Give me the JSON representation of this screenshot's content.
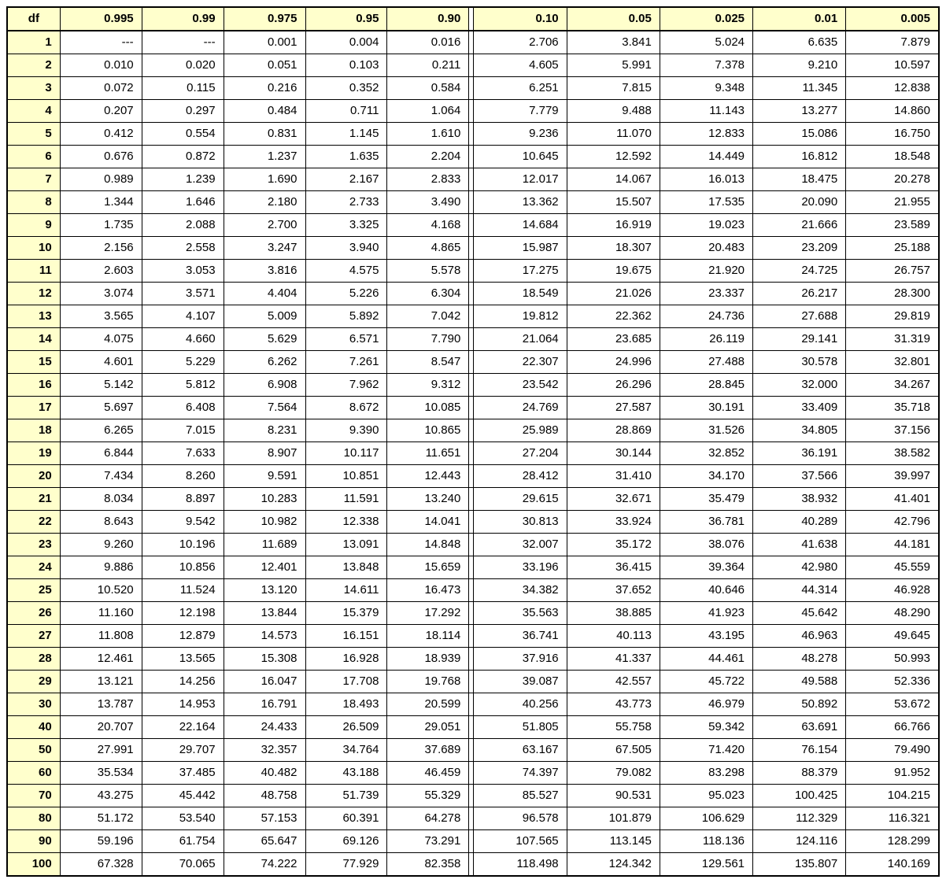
{
  "table": {
    "type": "table",
    "header_bg": "#ffffcc",
    "cell_bg": "#ffffff",
    "border_color": "#000000",
    "font_family": "Arial",
    "header_fontsize": 15,
    "cell_fontsize": 15,
    "df_label": "df",
    "left_headers": [
      "0.995",
      "0.99",
      "0.975",
      "0.95",
      "0.90"
    ],
    "right_headers": [
      "0.10",
      "0.05",
      "0.025",
      "0.01",
      "0.005"
    ],
    "rows": [
      {
        "df": "1",
        "l": [
          "---",
          "---",
          "0.001",
          "0.004",
          "0.016"
        ],
        "r": [
          "2.706",
          "3.841",
          "5.024",
          "6.635",
          "7.879"
        ]
      },
      {
        "df": "2",
        "l": [
          "0.010",
          "0.020",
          "0.051",
          "0.103",
          "0.211"
        ],
        "r": [
          "4.605",
          "5.991",
          "7.378",
          "9.210",
          "10.597"
        ]
      },
      {
        "df": "3",
        "l": [
          "0.072",
          "0.115",
          "0.216",
          "0.352",
          "0.584"
        ],
        "r": [
          "6.251",
          "7.815",
          "9.348",
          "11.345",
          "12.838"
        ]
      },
      {
        "df": "4",
        "l": [
          "0.207",
          "0.297",
          "0.484",
          "0.711",
          "1.064"
        ],
        "r": [
          "7.779",
          "9.488",
          "11.143",
          "13.277",
          "14.860"
        ]
      },
      {
        "df": "5",
        "l": [
          "0.412",
          "0.554",
          "0.831",
          "1.145",
          "1.610"
        ],
        "r": [
          "9.236",
          "11.070",
          "12.833",
          "15.086",
          "16.750"
        ]
      },
      {
        "df": "6",
        "l": [
          "0.676",
          "0.872",
          "1.237",
          "1.635",
          "2.204"
        ],
        "r": [
          "10.645",
          "12.592",
          "14.449",
          "16.812",
          "18.548"
        ]
      },
      {
        "df": "7",
        "l": [
          "0.989",
          "1.239",
          "1.690",
          "2.167",
          "2.833"
        ],
        "r": [
          "12.017",
          "14.067",
          "16.013",
          "18.475",
          "20.278"
        ]
      },
      {
        "df": "8",
        "l": [
          "1.344",
          "1.646",
          "2.180",
          "2.733",
          "3.490"
        ],
        "r": [
          "13.362",
          "15.507",
          "17.535",
          "20.090",
          "21.955"
        ]
      },
      {
        "df": "9",
        "l": [
          "1.735",
          "2.088",
          "2.700",
          "3.325",
          "4.168"
        ],
        "r": [
          "14.684",
          "16.919",
          "19.023",
          "21.666",
          "23.589"
        ]
      },
      {
        "df": "10",
        "l": [
          "2.156",
          "2.558",
          "3.247",
          "3.940",
          "4.865"
        ],
        "r": [
          "15.987",
          "18.307",
          "20.483",
          "23.209",
          "25.188"
        ]
      },
      {
        "df": "11",
        "l": [
          "2.603",
          "3.053",
          "3.816",
          "4.575",
          "5.578"
        ],
        "r": [
          "17.275",
          "19.675",
          "21.920",
          "24.725",
          "26.757"
        ]
      },
      {
        "df": "12",
        "l": [
          "3.074",
          "3.571",
          "4.404",
          "5.226",
          "6.304"
        ],
        "r": [
          "18.549",
          "21.026",
          "23.337",
          "26.217",
          "28.300"
        ]
      },
      {
        "df": "13",
        "l": [
          "3.565",
          "4.107",
          "5.009",
          "5.892",
          "7.042"
        ],
        "r": [
          "19.812",
          "22.362",
          "24.736",
          "27.688",
          "29.819"
        ]
      },
      {
        "df": "14",
        "l": [
          "4.075",
          "4.660",
          "5.629",
          "6.571",
          "7.790"
        ],
        "r": [
          "21.064",
          "23.685",
          "26.119",
          "29.141",
          "31.319"
        ]
      },
      {
        "df": "15",
        "l": [
          "4.601",
          "5.229",
          "6.262",
          "7.261",
          "8.547"
        ],
        "r": [
          "22.307",
          "24.996",
          "27.488",
          "30.578",
          "32.801"
        ]
      },
      {
        "df": "16",
        "l": [
          "5.142",
          "5.812",
          "6.908",
          "7.962",
          "9.312"
        ],
        "r": [
          "23.542",
          "26.296",
          "28.845",
          "32.000",
          "34.267"
        ]
      },
      {
        "df": "17",
        "l": [
          "5.697",
          "6.408",
          "7.564",
          "8.672",
          "10.085"
        ],
        "r": [
          "24.769",
          "27.587",
          "30.191",
          "33.409",
          "35.718"
        ]
      },
      {
        "df": "18",
        "l": [
          "6.265",
          "7.015",
          "8.231",
          "9.390",
          "10.865"
        ],
        "r": [
          "25.989",
          "28.869",
          "31.526",
          "34.805",
          "37.156"
        ]
      },
      {
        "df": "19",
        "l": [
          "6.844",
          "7.633",
          "8.907",
          "10.117",
          "11.651"
        ],
        "r": [
          "27.204",
          "30.144",
          "32.852",
          "36.191",
          "38.582"
        ]
      },
      {
        "df": "20",
        "l": [
          "7.434",
          "8.260",
          "9.591",
          "10.851",
          "12.443"
        ],
        "r": [
          "28.412",
          "31.410",
          "34.170",
          "37.566",
          "39.997"
        ]
      },
      {
        "df": "21",
        "l": [
          "8.034",
          "8.897",
          "10.283",
          "11.591",
          "13.240"
        ],
        "r": [
          "29.615",
          "32.671",
          "35.479",
          "38.932",
          "41.401"
        ]
      },
      {
        "df": "22",
        "l": [
          "8.643",
          "9.542",
          "10.982",
          "12.338",
          "14.041"
        ],
        "r": [
          "30.813",
          "33.924",
          "36.781",
          "40.289",
          "42.796"
        ]
      },
      {
        "df": "23",
        "l": [
          "9.260",
          "10.196",
          "11.689",
          "13.091",
          "14.848"
        ],
        "r": [
          "32.007",
          "35.172",
          "38.076",
          "41.638",
          "44.181"
        ]
      },
      {
        "df": "24",
        "l": [
          "9.886",
          "10.856",
          "12.401",
          "13.848",
          "15.659"
        ],
        "r": [
          "33.196",
          "36.415",
          "39.364",
          "42.980",
          "45.559"
        ]
      },
      {
        "df": "25",
        "l": [
          "10.520",
          "11.524",
          "13.120",
          "14.611",
          "16.473"
        ],
        "r": [
          "34.382",
          "37.652",
          "40.646",
          "44.314",
          "46.928"
        ]
      },
      {
        "df": "26",
        "l": [
          "11.160",
          "12.198",
          "13.844",
          "15.379",
          "17.292"
        ],
        "r": [
          "35.563",
          "38.885",
          "41.923",
          "45.642",
          "48.290"
        ]
      },
      {
        "df": "27",
        "l": [
          "11.808",
          "12.879",
          "14.573",
          "16.151",
          "18.114"
        ],
        "r": [
          "36.741",
          "40.113",
          "43.195",
          "46.963",
          "49.645"
        ]
      },
      {
        "df": "28",
        "l": [
          "12.461",
          "13.565",
          "15.308",
          "16.928",
          "18.939"
        ],
        "r": [
          "37.916",
          "41.337",
          "44.461",
          "48.278",
          "50.993"
        ]
      },
      {
        "df": "29",
        "l": [
          "13.121",
          "14.256",
          "16.047",
          "17.708",
          "19.768"
        ],
        "r": [
          "39.087",
          "42.557",
          "45.722",
          "49.588",
          "52.336"
        ]
      },
      {
        "df": "30",
        "l": [
          "13.787",
          "14.953",
          "16.791",
          "18.493",
          "20.599"
        ],
        "r": [
          "40.256",
          "43.773",
          "46.979",
          "50.892",
          "53.672"
        ]
      },
      {
        "df": "40",
        "l": [
          "20.707",
          "22.164",
          "24.433",
          "26.509",
          "29.051"
        ],
        "r": [
          "51.805",
          "55.758",
          "59.342",
          "63.691",
          "66.766"
        ]
      },
      {
        "df": "50",
        "l": [
          "27.991",
          "29.707",
          "32.357",
          "34.764",
          "37.689"
        ],
        "r": [
          "63.167",
          "67.505",
          "71.420",
          "76.154",
          "79.490"
        ]
      },
      {
        "df": "60",
        "l": [
          "35.534",
          "37.485",
          "40.482",
          "43.188",
          "46.459"
        ],
        "r": [
          "74.397",
          "79.082",
          "83.298",
          "88.379",
          "91.952"
        ]
      },
      {
        "df": "70",
        "l": [
          "43.275",
          "45.442",
          "48.758",
          "51.739",
          "55.329"
        ],
        "r": [
          "85.527",
          "90.531",
          "95.023",
          "100.425",
          "104.215"
        ]
      },
      {
        "df": "80",
        "l": [
          "51.172",
          "53.540",
          "57.153",
          "60.391",
          "64.278"
        ],
        "r": [
          "96.578",
          "101.879",
          "106.629",
          "112.329",
          "116.321"
        ]
      },
      {
        "df": "90",
        "l": [
          "59.196",
          "61.754",
          "65.647",
          "69.126",
          "73.291"
        ],
        "r": [
          "107.565",
          "113.145",
          "118.136",
          "124.116",
          "128.299"
        ]
      },
      {
        "df": "100",
        "l": [
          "67.328",
          "70.065",
          "74.222",
          "77.929",
          "82.358"
        ],
        "r": [
          "118.498",
          "124.342",
          "129.561",
          "135.807",
          "140.169"
        ]
      }
    ]
  }
}
